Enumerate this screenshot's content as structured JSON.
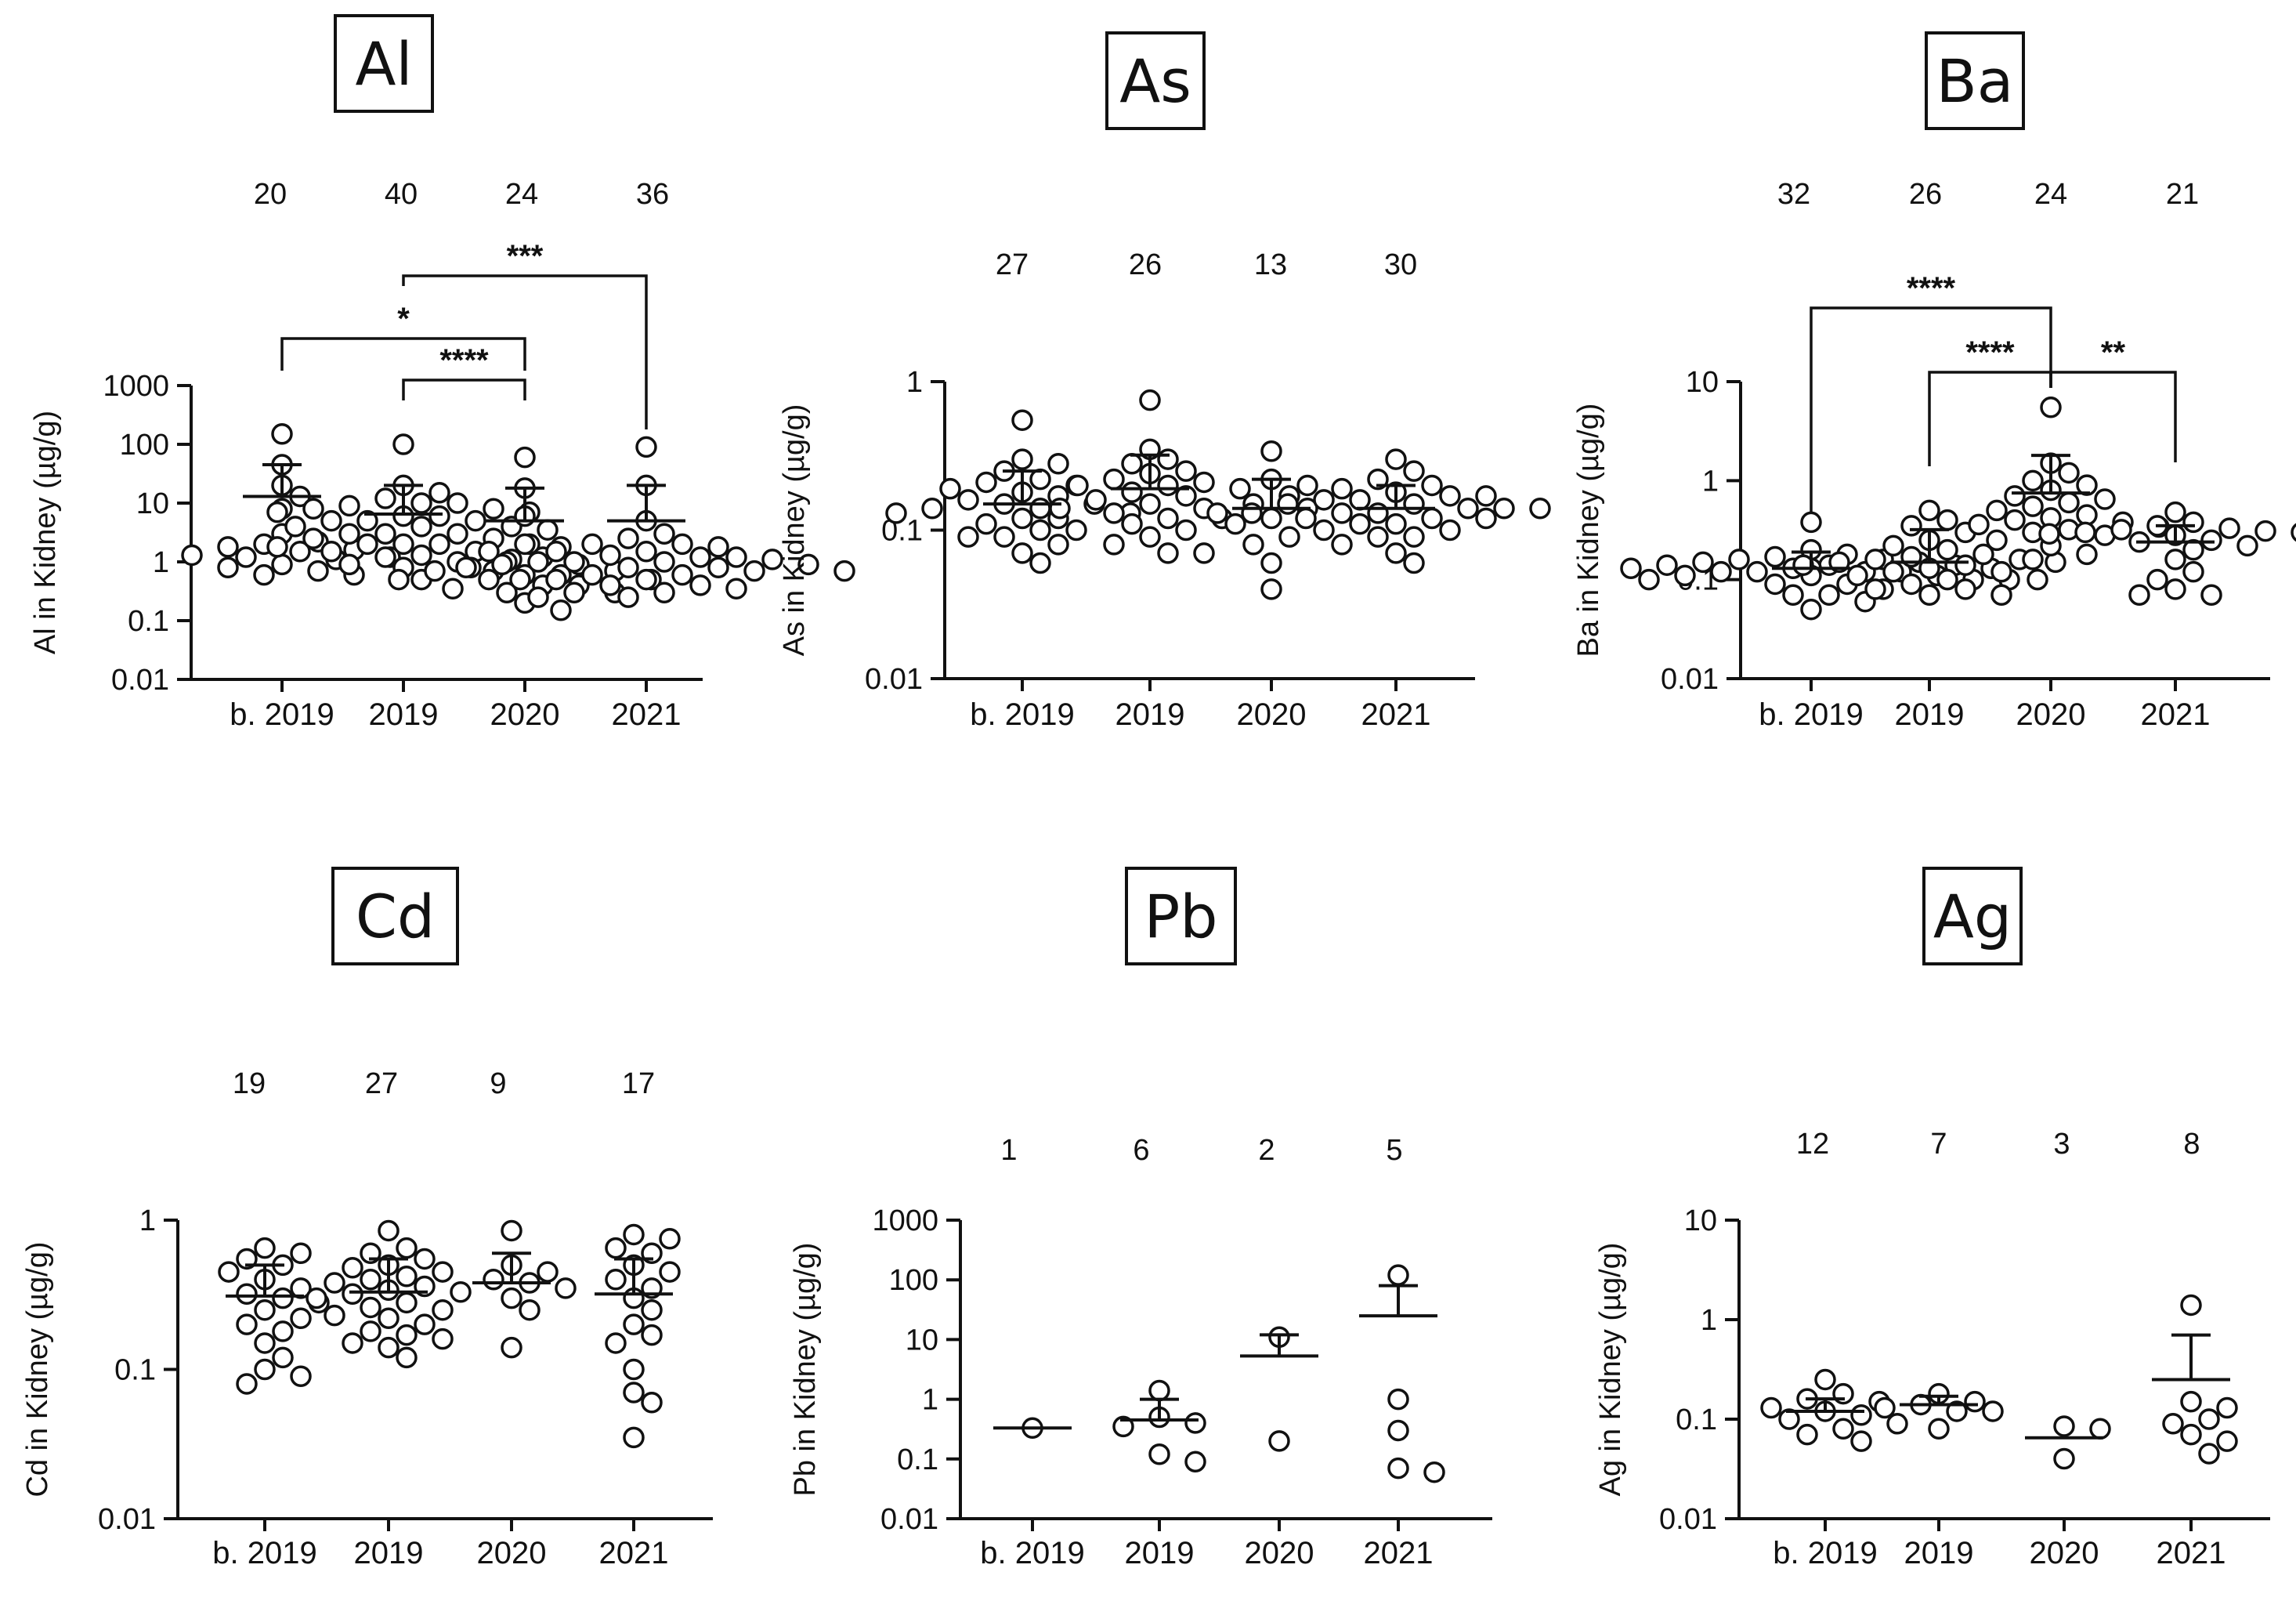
{
  "chart_data": [
    {
      "type": "scatter",
      "element": "Al",
      "title": "Al",
      "ylabel": "Al in Kidney (µg/g)",
      "yscale": "log",
      "ylim": [
        0.01,
        1000
      ],
      "yticks": [
        "0.01",
        "0.1",
        "1",
        "10",
        "100",
        "1000"
      ],
      "categories": [
        "b. 2019",
        "2019",
        "2020",
        "2021"
      ],
      "counts": [
        "20",
        "40",
        "24",
        "36"
      ],
      "means": [
        13,
        6.5,
        5,
        5
      ],
      "upper_error": [
        45,
        20,
        18,
        20
      ],
      "points": [
        [
          150,
          45,
          20,
          13,
          8,
          3,
          2.2,
          2,
          1.8,
          1.6,
          1.5,
          1.3,
          1.2,
          1.1,
          1.2,
          0.9,
          0.8,
          0.7,
          0.6,
          0.6
        ],
        [
          100,
          20,
          15,
          12,
          10,
          10,
          9,
          8,
          8,
          7,
          7,
          6,
          6,
          5,
          5,
          5,
          4,
          4,
          4,
          3.5,
          3,
          3,
          3,
          2.5,
          2.5,
          2,
          2,
          2,
          2,
          1.8,
          1.5,
          1.5,
          1.3,
          1.2,
          1.1,
          1.0,
          0.9,
          0.8,
          0.7,
          0.5
        ],
        [
          60,
          18,
          6,
          2,
          1.8,
          1.5,
          1.2,
          1,
          0.9,
          0.8,
          0.7,
          0.7,
          0.6,
          0.6,
          0.5,
          0.5,
          0.5,
          0.4,
          0.4,
          0.35,
          0.3,
          0.3,
          0.2,
          0.15
        ],
        [
          90,
          20,
          5,
          3,
          2.5,
          2,
          2,
          1.8,
          1.5,
          1.5,
          1.3,
          1.2,
          1.2,
          1.1,
          1,
          1,
          1,
          0.9,
          0.9,
          0.8,
          0.8,
          0.8,
          0.7,
          0.7,
          0.6,
          0.6,
          0.5,
          0.5,
          0.5,
          0.4,
          0.4,
          0.35,
          0.3,
          0.3,
          0.25,
          0.25
        ]
      ],
      "significance": [
        {
          "from": 0,
          "to": 2,
          "label": "*"
        },
        {
          "from": 1,
          "to": 2,
          "label": "****"
        },
        {
          "from": 1,
          "to": 3,
          "label": "***"
        }
      ]
    },
    {
      "type": "scatter",
      "element": "As",
      "title": "As",
      "ylabel": "As in Kidney (µg/g)",
      "yscale": "log",
      "ylim": [
        0.01,
        1
      ],
      "yticks": [
        "0.01",
        "0.1",
        "1"
      ],
      "categories": [
        "b. 2019",
        "2019",
        "2020",
        "2021"
      ],
      "counts": [
        "27",
        "26",
        "13",
        "30"
      ],
      "means": [
        0.15,
        0.19,
        0.14,
        0.14
      ],
      "upper_error": [
        0.25,
        0.32,
        0.22,
        0.2
      ],
      "points": [
        [
          0.55,
          0.3,
          0.28,
          0.25,
          0.22,
          0.21,
          0.2,
          0.19,
          0.18,
          0.17,
          0.16,
          0.15,
          0.15,
          0.14,
          0.14,
          0.13,
          0.13,
          0.12,
          0.12,
          0.11,
          0.1,
          0.1,
          0.09,
          0.09,
          0.08,
          0.07,
          0.06
        ],
        [
          0.75,
          0.35,
          0.3,
          0.28,
          0.25,
          0.24,
          0.22,
          0.21,
          0.2,
          0.2,
          0.19,
          0.18,
          0.17,
          0.16,
          0.15,
          0.14,
          0.14,
          0.13,
          0.12,
          0.12,
          0.11,
          0.1,
          0.09,
          0.08,
          0.07,
          0.07
        ],
        [
          0.34,
          0.22,
          0.2,
          0.17,
          0.15,
          0.14,
          0.13,
          0.12,
          0.11,
          0.09,
          0.08,
          0.06,
          0.04
        ],
        [
          0.3,
          0.25,
          0.22,
          0.2,
          0.19,
          0.18,
          0.17,
          0.17,
          0.16,
          0.16,
          0.15,
          0.15,
          0.14,
          0.14,
          0.14,
          0.13,
          0.13,
          0.13,
          0.12,
          0.12,
          0.12,
          0.11,
          0.11,
          0.1,
          0.1,
          0.09,
          0.09,
          0.08,
          0.07,
          0.06
        ]
      ],
      "significance": []
    },
    {
      "type": "scatter",
      "element": "Ba",
      "title": "Ba",
      "ylabel": "Ba in Kidney (µg/g)",
      "yscale": "log",
      "ylim": [
        0.01,
        10
      ],
      "yticks": [
        "0.01",
        "0.1",
        "1",
        "10"
      ],
      "categories": [
        "b. 2019",
        "2019",
        "2020",
        "2021"
      ],
      "counts": [
        "32",
        "26",
        "24",
        "21"
      ],
      "means": [
        0.13,
        0.15,
        0.75,
        0.24
      ],
      "upper_error": [
        0.19,
        0.32,
        1.8,
        0.35
      ],
      "points": [
        [
          0.38,
          0.2,
          0.18,
          0.17,
          0.16,
          0.16,
          0.15,
          0.15,
          0.14,
          0.14,
          0.14,
          0.13,
          0.13,
          0.13,
          0.13,
          0.12,
          0.12,
          0.12,
          0.12,
          0.11,
          0.11,
          0.11,
          0.1,
          0.1,
          0.1,
          0.09,
          0.09,
          0.08,
          0.07,
          0.07,
          0.06,
          0.05
        ],
        [
          0.5,
          0.4,
          0.35,
          0.3,
          0.25,
          0.22,
          0.2,
          0.18,
          0.17,
          0.16,
          0.16,
          0.15,
          0.15,
          0.14,
          0.14,
          0.13,
          0.12,
          0.12,
          0.11,
          0.1,
          0.1,
          0.09,
          0.08,
          0.08,
          0.07,
          0.07
        ],
        [
          5.5,
          1.5,
          1.2,
          1,
          0.9,
          0.8,
          0.7,
          0.65,
          0.6,
          0.55,
          0.5,
          0.45,
          0.42,
          0.4,
          0.38,
          0.36,
          0.34,
          0.32,
          0.3,
          0.28,
          0.25,
          0.22,
          0.18,
          0.16
        ],
        [
          0.48,
          0.38,
          0.35,
          0.33,
          0.32,
          0.31,
          0.3,
          0.3,
          0.29,
          0.28,
          0.27,
          0.25,
          0.24,
          0.22,
          0.2,
          0.16,
          0.12,
          0.1,
          0.08,
          0.07,
          0.07
        ]
      ],
      "significance": [
        {
          "from": 0,
          "to": 2,
          "label": "****"
        },
        {
          "from": 1,
          "to": 2,
          "label": "****"
        },
        {
          "from": 2,
          "to": 3,
          "label": "**"
        }
      ]
    },
    {
      "type": "scatter",
      "element": "Cd",
      "title": "Cd",
      "ylabel": "Cd in Kidney (µg/g)",
      "yscale": "log",
      "ylim": [
        0.01,
        1
      ],
      "yticks": [
        "0.01",
        "0.1",
        "1"
      ],
      "categories": [
        "b. 2019",
        "2019",
        "2020",
        "2021"
      ],
      "counts": [
        "19",
        "27",
        "9",
        "17"
      ],
      "means": [
        0.31,
        0.33,
        0.38,
        0.32
      ],
      "upper_error": [
        0.5,
        0.55,
        0.6,
        0.55
      ],
      "points": [
        [
          0.65,
          0.6,
          0.55,
          0.5,
          0.45,
          0.4,
          0.35,
          0.32,
          0.3,
          0.28,
          0.25,
          0.22,
          0.2,
          0.18,
          0.15,
          0.12,
          0.1,
          0.09,
          0.08
        ],
        [
          0.85,
          0.65,
          0.6,
          0.55,
          0.5,
          0.48,
          0.45,
          0.42,
          0.4,
          0.38,
          0.36,
          0.34,
          0.33,
          0.32,
          0.3,
          0.28,
          0.26,
          0.25,
          0.23,
          0.22,
          0.2,
          0.18,
          0.17,
          0.16,
          0.15,
          0.14,
          0.12
        ],
        [
          0.85,
          0.5,
          0.45,
          0.4,
          0.38,
          0.35,
          0.3,
          0.25,
          0.14
        ],
        [
          0.8,
          0.75,
          0.65,
          0.6,
          0.5,
          0.45,
          0.4,
          0.35,
          0.3,
          0.25,
          0.2,
          0.17,
          0.15,
          0.1,
          0.07,
          0.06,
          0.035
        ]
      ],
      "significance": []
    },
    {
      "type": "scatter",
      "element": "Pb",
      "title": "Pb",
      "ylabel": "Pb in Kidney (µg/g)",
      "yscale": "log",
      "ylim": [
        0.01,
        1000
      ],
      "yticks": [
        "0.01",
        "0.1",
        "1",
        "10",
        "100",
        "1000"
      ],
      "categories": [
        "b. 2019",
        "2019",
        "2020",
        "2021"
      ],
      "counts": [
        "1",
        "6",
        "2",
        "5"
      ],
      "means": [
        0.33,
        0.45,
        5.3,
        25
      ],
      "upper_error": [
        null,
        1,
        12,
        80
      ],
      "points": [
        [
          0.33
        ],
        [
          1.4,
          0.5,
          0.4,
          0.35,
          0.12,
          0.09
        ],
        [
          11,
          0.2
        ],
        [
          120,
          1,
          0.3,
          0.07,
          0.06
        ]
      ],
      "significance": []
    },
    {
      "type": "scatter",
      "element": "Ag",
      "title": "Ag",
      "ylabel": "Ag in Kidney (µg/g)",
      "yscale": "log",
      "ylim": [
        0.01,
        10
      ],
      "yticks": [
        "0.01",
        "0.1",
        "1",
        "10"
      ],
      "categories": [
        "b. 2019",
        "2019",
        "2020",
        "2021"
      ],
      "counts": [
        "12",
        "7",
        "3",
        "8"
      ],
      "means": [
        0.12,
        0.14,
        0.065,
        0.25
      ],
      "upper_error": [
        0.16,
        0.17,
        null,
        0.7
      ],
      "points": [
        [
          0.25,
          0.18,
          0.16,
          0.15,
          0.13,
          0.12,
          0.11,
          0.1,
          0.09,
          0.08,
          0.07,
          0.06
        ],
        [
          0.18,
          0.15,
          0.14,
          0.13,
          0.12,
          0.12,
          0.08
        ],
        [
          0.085,
          0.08,
          0.04
        ],
        [
          1.4,
          0.15,
          0.13,
          0.1,
          0.09,
          0.07,
          0.06,
          0.045
        ]
      ],
      "significance": []
    }
  ]
}
